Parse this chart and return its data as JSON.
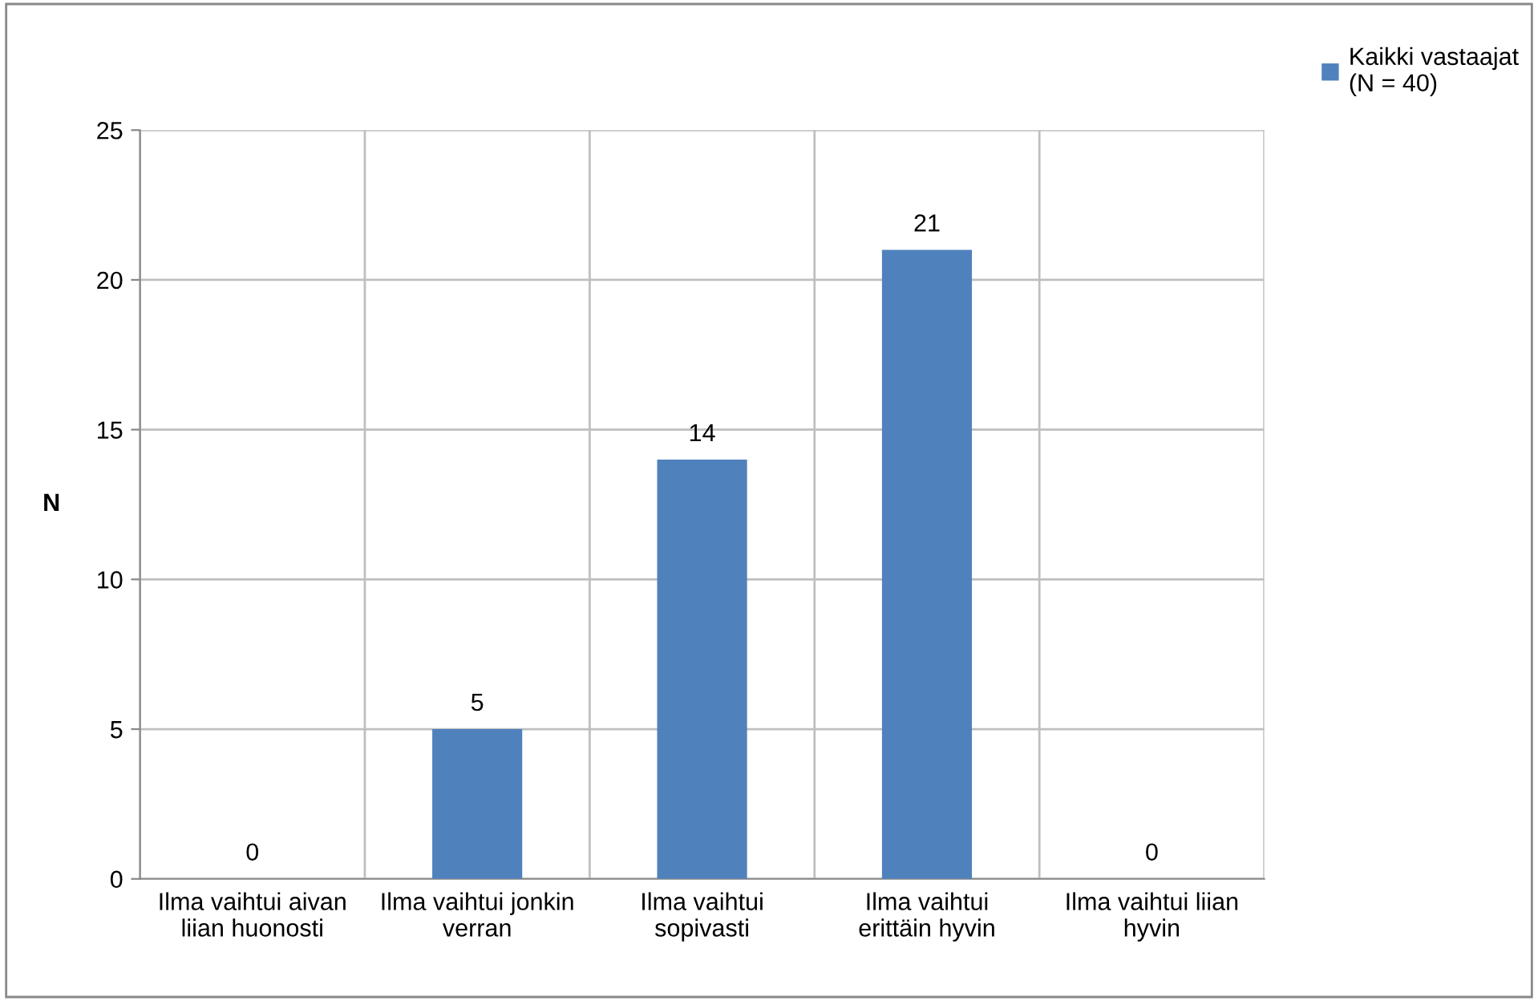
{
  "chart_data": {
    "type": "bar",
    "ylabel": "N",
    "categories": [
      "Ilma vaihtui aivan\nliian huonosti",
      "Ilma vaihtui jonkin\nverran",
      "Ilma vaihtui\nsopivasti",
      "Ilma vaihtui\nerittäin hyvin",
      "Ilma vaihtui liian\nhyvin"
    ],
    "series": [
      {
        "name": "Kaikki vastaajat\n(N = 40)",
        "color": "#4f81bd",
        "values": [
          0,
          5,
          14,
          21,
          0
        ]
      }
    ],
    "ylim": [
      0,
      25
    ],
    "yticks": [
      0,
      5,
      10,
      15,
      20,
      25
    ],
    "grid": true,
    "legend": "top right",
    "data_labels": true
  }
}
